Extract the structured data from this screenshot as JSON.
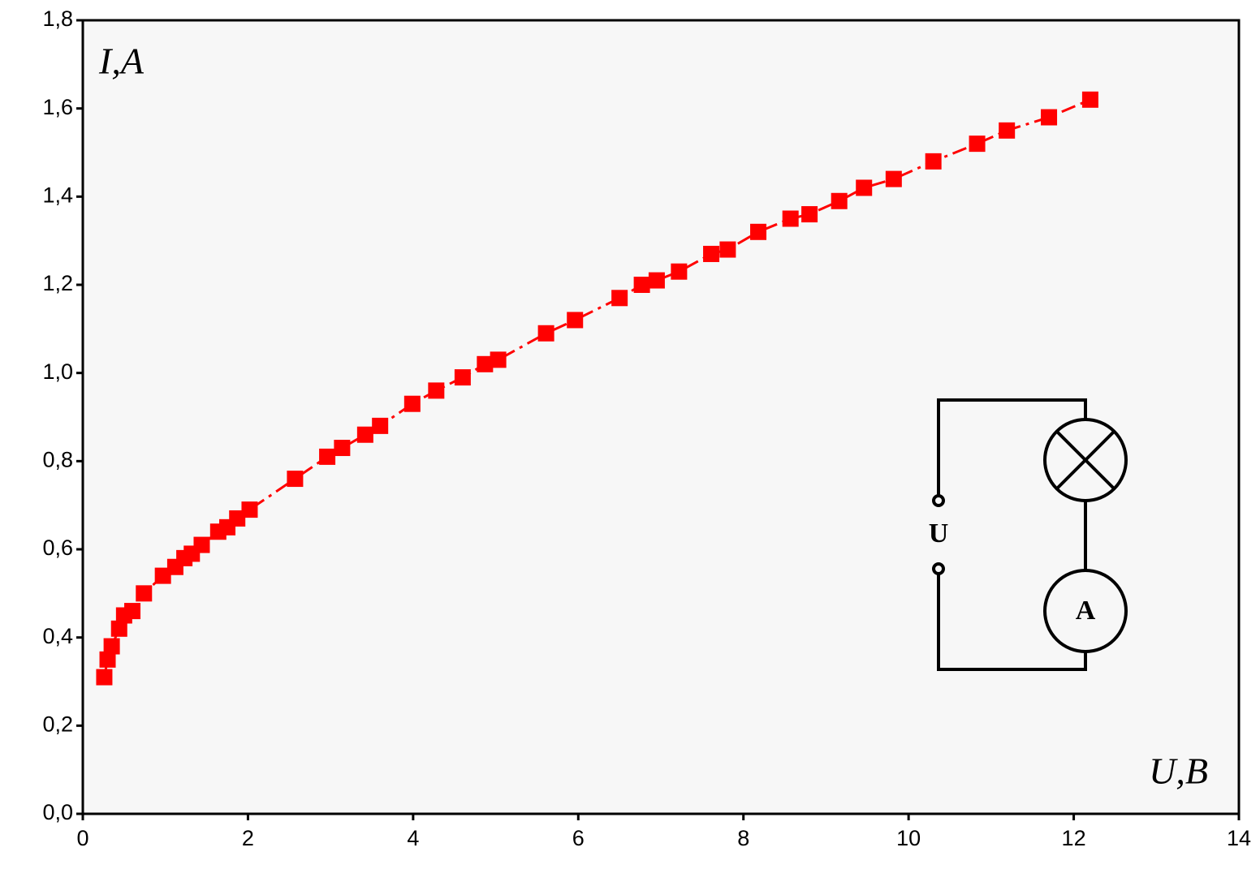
{
  "chart_data": {
    "type": "line",
    "x_label": "U,B",
    "y_label": "I,A",
    "x": [
      0.26,
      0.3,
      0.35,
      0.44,
      0.5,
      0.6,
      0.74,
      0.97,
      1.12,
      1.23,
      1.32,
      1.44,
      1.64,
      1.75,
      1.87,
      2.02,
      2.57,
      2.96,
      3.14,
      3.42,
      3.6,
      3.99,
      4.28,
      4.6,
      4.87,
      5.03,
      5.61,
      5.96,
      6.5,
      6.77,
      6.95,
      7.22,
      7.61,
      7.81,
      8.18,
      8.57,
      8.8,
      9.16,
      9.46,
      9.82,
      10.3,
      10.83,
      11.19,
      11.7,
      12.2
    ],
    "series": [
      {
        "color": "#ff0000",
        "markers": true,
        "line_style": "dashdot",
        "values": [
          0.31,
          0.35,
          0.38,
          0.42,
          0.45,
          0.46,
          0.5,
          0.54,
          0.56,
          0.58,
          0.59,
          0.61,
          0.64,
          0.65,
          0.67,
          0.69,
          0.76,
          0.81,
          0.83,
          0.86,
          0.88,
          0.93,
          0.96,
          0.99,
          1.02,
          1.03,
          1.09,
          1.12,
          1.17,
          1.2,
          1.21,
          1.23,
          1.27,
          1.28,
          1.32,
          1.35,
          1.36,
          1.39,
          1.42,
          1.44,
          1.48,
          1.52,
          1.55,
          1.58,
          1.62
        ]
      }
    ],
    "xlim": [
      0,
      14
    ],
    "xticks": [
      0,
      2,
      4,
      6,
      8,
      10,
      12,
      14
    ],
    "ylim": [
      0,
      1.8
    ],
    "yticks": [
      {
        "value": 0,
        "label": "0,0"
      },
      {
        "value": 0.2,
        "label": "0,2"
      },
      {
        "value": 0.4,
        "label": "0,4"
      },
      {
        "value": 0.6,
        "label": "0,6"
      },
      {
        "value": 0.8,
        "label": "0,8"
      },
      {
        "value": 1.0,
        "label": "1,0"
      },
      {
        "value": 1.2,
        "label": "1,2"
      },
      {
        "value": 1.4,
        "label": "1,4"
      },
      {
        "value": 1.6,
        "label": "1,6"
      },
      {
        "value": 1.8,
        "label": "1,8"
      }
    ],
    "circuit": {
      "source_label": "U",
      "meter_label": "A"
    }
  }
}
